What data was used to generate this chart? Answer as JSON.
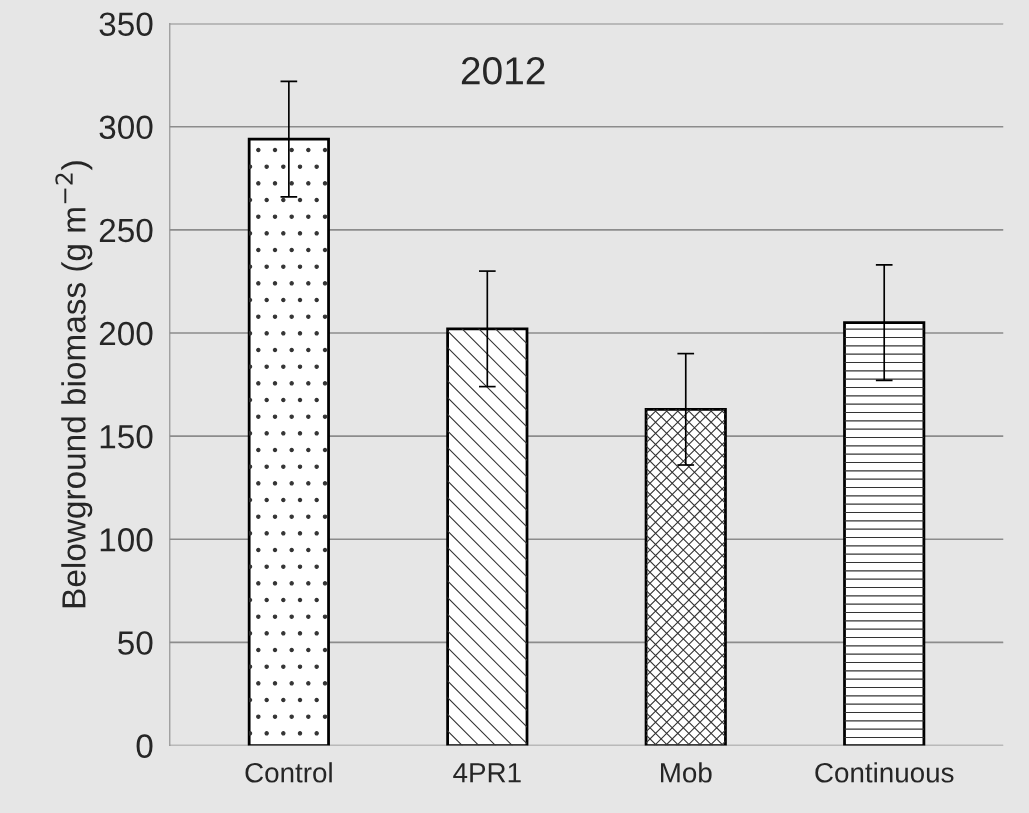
{
  "chart_data": {
    "type": "bar",
    "ylabel": "Belowground biomass (g m$^{−2}$)",
    "annotations": [
      "2012"
    ],
    "categories": [
      "Control",
      "4PR1",
      "Mob",
      "Continuous"
    ],
    "values": [
      294,
      202,
      163,
      205
    ],
    "errors": [
      28,
      28,
      27,
      28
    ],
    "colors": [
      "#ffffff",
      "#ffffff",
      "#ffffff",
      "#ffffff"
    ],
    "ylim": [
      0,
      350
    ],
    "yticks": [
      0,
      50,
      100,
      150,
      200,
      250,
      300,
      350
    ],
    "grid": "y"
  }
}
